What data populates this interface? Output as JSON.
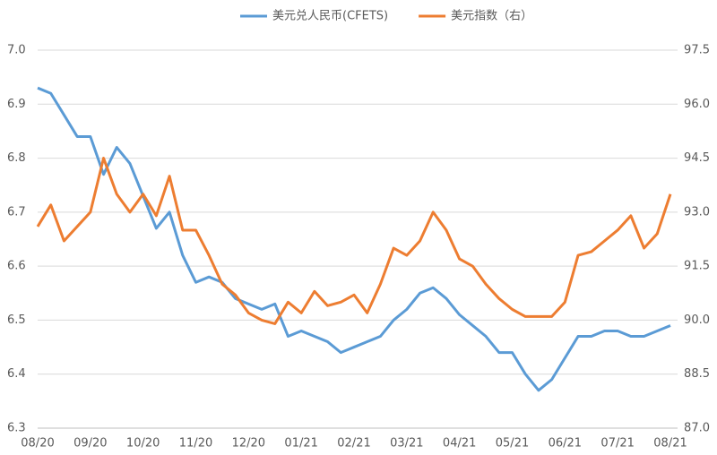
{
  "chart_data": {
    "type": "line",
    "categories": [
      "08/20",
      null,
      null,
      null,
      "09/20",
      null,
      null,
      null,
      "10/20",
      null,
      null,
      null,
      "11/20",
      null,
      null,
      null,
      "12/20",
      null,
      null,
      null,
      "01/21",
      null,
      null,
      null,
      "02/21",
      null,
      null,
      null,
      "03/21",
      null,
      null,
      null,
      "04/21",
      null,
      null,
      null,
      "05/21",
      null,
      null,
      null,
      "06/21",
      null,
      null,
      null,
      "07/21",
      null,
      null,
      null,
      "08/21"
    ],
    "series": [
      {
        "name": "美元兑人民币(CFETS)",
        "color": "#5b9bd5",
        "axis": "y",
        "values": [
          6.93,
          6.92,
          6.88,
          6.84,
          6.84,
          6.77,
          6.82,
          6.79,
          6.73,
          6.67,
          6.7,
          6.62,
          6.57,
          6.58,
          6.57,
          6.54,
          6.53,
          6.52,
          6.53,
          6.47,
          6.48,
          6.47,
          6.46,
          6.44,
          6.45,
          6.46,
          6.47,
          6.5,
          6.52,
          6.55,
          6.56,
          6.54,
          6.51,
          6.49,
          6.47,
          6.44,
          6.44,
          6.4,
          6.37,
          6.39,
          6.43,
          6.47,
          6.47,
          6.48,
          6.48,
          6.47,
          6.47,
          6.48,
          6.49
        ]
      },
      {
        "name": "美元指数（右）",
        "color": "#ed7d31",
        "axis": "y2",
        "values": [
          92.6,
          93.2,
          92.2,
          92.6,
          93.0,
          94.5,
          93.5,
          93.0,
          93.5,
          92.9,
          94.0,
          92.5,
          92.5,
          91.8,
          91.0,
          90.7,
          90.2,
          90.0,
          89.9,
          90.5,
          90.2,
          90.8,
          90.4,
          90.5,
          90.7,
          90.2,
          91.0,
          92.0,
          91.8,
          92.2,
          93.0,
          92.5,
          91.7,
          91.5,
          91.0,
          90.6,
          90.3,
          90.1,
          90.1,
          90.1,
          90.5,
          91.8,
          91.9,
          92.2,
          92.5,
          92.9,
          92.0,
          92.4,
          93.5
        ]
      }
    ],
    "ylim": [
      6.3,
      7.0
    ],
    "yticks": [
      6.3,
      6.4,
      6.5,
      6.6,
      6.7,
      6.8,
      6.9,
      {
        "value": 7.0,
        "label": "7.0"
      }
    ],
    "y2lim": [
      87.0,
      97.5
    ],
    "y2ticks": [
      {
        "value": 87.0,
        "label": "87.0"
      },
      88.5,
      {
        "value": 90.0,
        "label": "90.0"
      },
      91.5,
      {
        "value": 93.0,
        "label": "93.0"
      },
      94.5,
      {
        "value": 96.0,
        "label": "96.0"
      },
      97.5
    ],
    "grid": true,
    "legend": "top"
  }
}
